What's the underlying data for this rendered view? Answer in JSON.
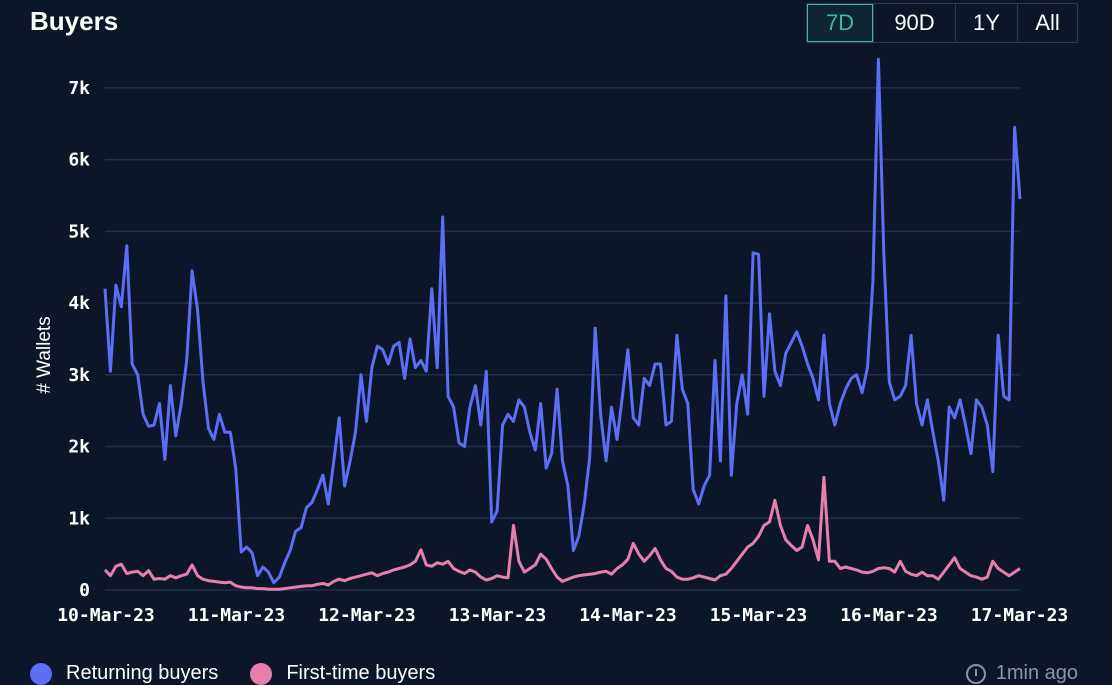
{
  "header": {
    "title": "Buyers",
    "ranges": [
      "7D",
      "90D",
      "1Y",
      "All"
    ],
    "active_range": "7D"
  },
  "footer": {
    "updated": "1min ago"
  },
  "colors": {
    "returning": "#5b6ef5",
    "first_time": "#e87fab",
    "active": "#3fb8a0"
  },
  "chart_data": {
    "type": "line",
    "title": "Buyers",
    "ylabel": "# Wallets",
    "xlabel": "",
    "ylim": [
      0,
      7500
    ],
    "yticks": [
      0,
      1000,
      2000,
      3000,
      4000,
      5000,
      6000,
      7000
    ],
    "ytick_labels": [
      "0",
      "1k",
      "2k",
      "3k",
      "4k",
      "5k",
      "6k",
      "7k"
    ],
    "xtick_labels": [
      "10-Mar-23",
      "11-Mar-23",
      "12-Mar-23",
      "13-Mar-23",
      "14-Mar-23",
      "15-Mar-23",
      "16-Mar-23",
      "17-Mar-23"
    ],
    "grid": true,
    "legend": "bottom-left",
    "series": [
      {
        "name": "Returning buyers",
        "color": "#5b6ef5",
        "values": [
          4200,
          3050,
          4250,
          3950,
          4800,
          3150,
          3000,
          2450,
          2280,
          2300,
          2600,
          1820,
          2850,
          2150,
          2600,
          3200,
          4450,
          3900,
          2900,
          2250,
          2100,
          2450,
          2200,
          2200,
          1700,
          530,
          600,
          520,
          200,
          320,
          250,
          100,
          180,
          380,
          550,
          820,
          870,
          1150,
          1220,
          1400,
          1600,
          1200,
          1800,
          2400,
          1450,
          1800,
          2200,
          3000,
          2350,
          3100,
          3400,
          3350,
          3150,
          3400,
          3450,
          2950,
          3500,
          3100,
          3200,
          3050,
          4200,
          3100,
          5200,
          2700,
          2550,
          2050,
          2000,
          2550,
          2850,
          2300,
          3050,
          950,
          1100,
          2300,
          2450,
          2350,
          2650,
          2550,
          2200,
          1950,
          2600,
          1700,
          1900,
          2800,
          1800,
          1450,
          550,
          750,
          1200,
          1850,
          3650,
          2450,
          1800,
          2550,
          2100,
          2700,
          3350,
          2400,
          2300,
          2950,
          2850,
          3150,
          3150,
          2300,
          2350,
          3550,
          2800,
          2600,
          1400,
          1200,
          1450,
          1600,
          3200,
          1800,
          4100,
          1600,
          2600,
          3000,
          2450,
          4700,
          4680,
          2700,
          3850,
          3050,
          2850,
          3300,
          3450,
          3600,
          3400,
          3150,
          2950,
          2650,
          3550,
          2600,
          2300,
          2600,
          2800,
          2950,
          3000,
          2750,
          3100,
          4300,
          7400,
          4700,
          2900,
          2650,
          2700,
          2850,
          3550,
          2600,
          2300,
          2650,
          2200,
          1800,
          1250,
          2550,
          2400,
          2650,
          2300,
          1900,
          2650,
          2550,
          2300,
          1650,
          3550,
          2700,
          2650,
          6450,
          5450
        ]
      },
      {
        "name": "First-time buyers",
        "color": "#e87fab",
        "values": [
          280,
          200,
          330,
          360,
          230,
          250,
          260,
          200,
          270,
          150,
          160,
          150,
          200,
          170,
          200,
          220,
          350,
          200,
          150,
          130,
          120,
          110,
          100,
          110,
          60,
          40,
          30,
          30,
          20,
          20,
          10,
          10,
          10,
          20,
          30,
          40,
          50,
          60,
          60,
          80,
          90,
          70,
          120,
          150,
          130,
          160,
          180,
          200,
          220,
          240,
          200,
          230,
          250,
          280,
          300,
          320,
          350,
          400,
          560,
          350,
          330,
          380,
          360,
          400,
          300,
          260,
          230,
          280,
          250,
          180,
          140,
          160,
          200,
          180,
          170,
          900,
          400,
          250,
          300,
          350,
          500,
          430,
          300,
          180,
          120,
          150,
          180,
          200,
          210,
          220,
          230,
          250,
          260,
          220,
          300,
          350,
          430,
          650,
          500,
          400,
          480,
          580,
          420,
          300,
          260,
          180,
          150,
          150,
          170,
          200,
          180,
          160,
          140,
          200,
          220,
          300,
          400,
          500,
          600,
          650,
          750,
          900,
          950,
          1250,
          900,
          700,
          620,
          550,
          600,
          900,
          700,
          420,
          1570,
          400,
          400,
          300,
          320,
          300,
          280,
          250,
          240,
          260,
          300,
          310,
          300,
          250,
          400,
          260,
          220,
          200,
          250,
          200,
          200,
          150,
          250,
          350,
          450,
          300,
          250,
          200,
          180,
          150,
          180,
          400,
          300,
          250,
          200,
          250,
          300
        ]
      }
    ]
  }
}
